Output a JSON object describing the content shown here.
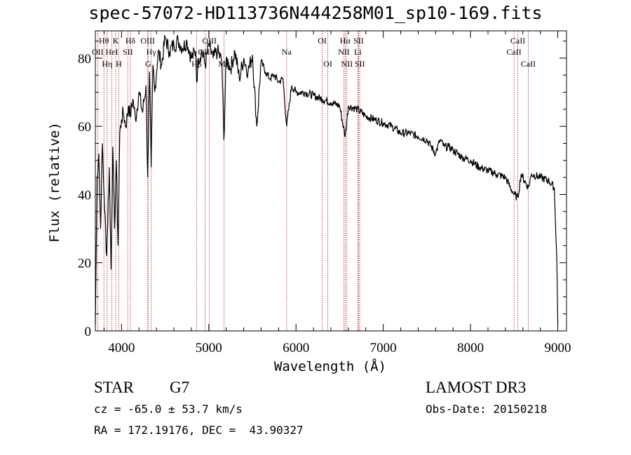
{
  "chart_data": {
    "type": "line",
    "title": "spec-57072-HD113736N444258M01_sp10-169.fits",
    "xlabel": "Wavelength (Å)",
    "ylabel": "Flux (relative)",
    "xlim": [
      3700,
      9100
    ],
    "ylim": [
      0,
      88
    ],
    "x_ticks": [
      "4000",
      "5000",
      "6000",
      "7000",
      "8000",
      "9000"
    ],
    "y_ticks": [
      "0",
      "20",
      "40",
      "60",
      "80"
    ],
    "series": [
      {
        "name": "spectrum",
        "x": [
          3700,
          3720,
          3740,
          3760,
          3780,
          3800,
          3830,
          3860,
          3880,
          3900,
          3920,
          3940,
          3960,
          3980,
          4000,
          4020,
          4050,
          4080,
          4100,
          4130,
          4160,
          4200,
          4240,
          4280,
          4300,
          4320,
          4340,
          4360,
          4380,
          4420,
          4460,
          4500,
          4550,
          4600,
          4650,
          4700,
          4750,
          4800,
          4850,
          4861,
          4880,
          4920,
          4960,
          5000,
          5050,
          5100,
          5150,
          5173,
          5200,
          5250,
          5300,
          5350,
          5400,
          5450,
          5500,
          5550,
          5600,
          5650,
          5700,
          5750,
          5800,
          5850,
          5893,
          5950,
          6000,
          6100,
          6200,
          6300,
          6400,
          6500,
          6563,
          6600,
          6700,
          6800,
          6900,
          7000,
          7100,
          7200,
          7300,
          7400,
          7500,
          7600,
          7650,
          7700,
          7750,
          7800,
          7900,
          8000,
          8100,
          8200,
          8300,
          8400,
          8498,
          8542,
          8580,
          8662,
          8700,
          8800,
          8900,
          8960,
          8990,
          9000
        ],
        "y": [
          2,
          45,
          52,
          30,
          55,
          40,
          22,
          48,
          18,
          54,
          30,
          50,
          25,
          58,
          62,
          64,
          60,
          66,
          63,
          68,
          62,
          70,
          64,
          72,
          45,
          76,
          48,
          78,
          70,
          82,
          78,
          86,
          82,
          84,
          85,
          83,
          85,
          80,
          82,
          73,
          80,
          82,
          78,
          84,
          80,
          82,
          79,
          56,
          80,
          77,
          82,
          74,
          80,
          76,
          81,
          60,
          79,
          76,
          74,
          75,
          73,
          74,
          60,
          72,
          70,
          70,
          69,
          68,
          67,
          66,
          57,
          66,
          65,
          63,
          62,
          61,
          60,
          58,
          58,
          57,
          56,
          52,
          56,
          54,
          54,
          53,
          51,
          50,
          48,
          47,
          46,
          45,
          40,
          39,
          46,
          42,
          46,
          45,
          44,
          42,
          20,
          2
        ]
      }
    ],
    "lines": [
      {
        "label": "Hθ",
        "wl": 3798,
        "row": 1
      },
      {
        "label": "OII",
        "wl": 3727,
        "row": 2
      },
      {
        "label": "Hη",
        "wl": 3835,
        "row": 3
      },
      {
        "label": "HeI",
        "wl": 3889,
        "row": 2
      },
      {
        "label": "K",
        "wl": 3934,
        "row": 1
      },
      {
        "label": "H",
        "wl": 3969,
        "row": 3
      },
      {
        "label": "SII",
        "wl": 4072,
        "row": 2
      },
      {
        "label": "Hδ",
        "wl": 4102,
        "row": 1
      },
      {
        "label": "OIII",
        "wl": 4300,
        "row": 1
      },
      {
        "label": "Hγ",
        "wl": 4340,
        "row": 2
      },
      {
        "label": "G",
        "wl": 4304,
        "row": 3
      },
      {
        "label": "Hβ",
        "wl": 4861,
        "row": 3
      },
      {
        "label": "OIII",
        "wl": 4959,
        "row": 2
      },
      {
        "label": "OIII",
        "wl": 5007,
        "row": 1
      },
      {
        "label": "Mg",
        "wl": 5175,
        "row": 3
      },
      {
        "label": "Na",
        "wl": 5893,
        "row": 2
      },
      {
        "label": "OI",
        "wl": 6300,
        "row": 1
      },
      {
        "label": "OI",
        "wl": 6364,
        "row": 3
      },
      {
        "label": "NII",
        "wl": 6548,
        "row": 2
      },
      {
        "label": "Hα",
        "wl": 6563,
        "row": 1
      },
      {
        "label": "NII",
        "wl": 6583,
        "row": 3
      },
      {
        "label": "Li",
        "wl": 6708,
        "row": 2
      },
      {
        "label": "SII",
        "wl": 6717,
        "row": 1
      },
      {
        "label": "SII",
        "wl": 6731,
        "row": 3
      },
      {
        "label": "CaII",
        "wl": 8498,
        "row": 2
      },
      {
        "label": "CaII",
        "wl": 8542,
        "row": 1
      },
      {
        "label": "CaII",
        "wl": 8662,
        "row": 3
      }
    ]
  },
  "info": {
    "class": "STAR",
    "subclass": "G7",
    "survey": "LAMOST DR3",
    "redshift": "cz = -65.0 ± 53.7 km/s",
    "obs_date": "Obs-Date: 20150218",
    "coords": "RA = 172.19176, DEC =  43.90327"
  },
  "colors": {
    "line_markers": "#b22222",
    "spectrum": "#000000"
  }
}
